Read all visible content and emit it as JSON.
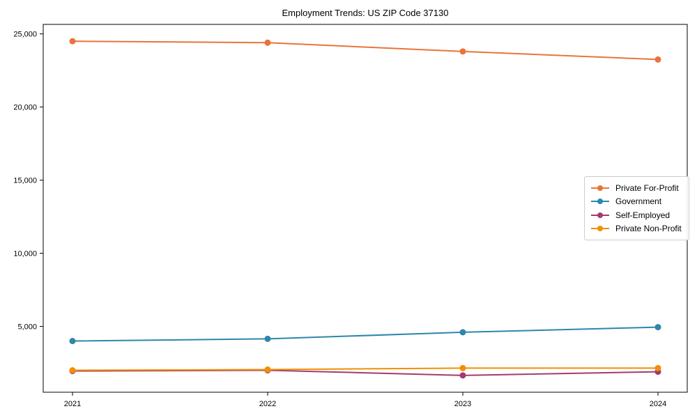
{
  "chart_data": {
    "type": "line",
    "title": "Employment Trends: US ZIP Code 37130",
    "xlabel": "",
    "ylabel": "",
    "x": [
      "2021",
      "2022",
      "2023",
      "2024"
    ],
    "series": [
      {
        "name": "Private For-Profit",
        "color": "#E8743B",
        "values": [
          24500,
          24400,
          23800,
          23250
        ]
      },
      {
        "name": "Government",
        "color": "#2E86AB",
        "values": [
          4000,
          4150,
          4600,
          4950
        ]
      },
      {
        "name": "Self-Employed",
        "color": "#A23B72",
        "values": [
          1950,
          2000,
          1650,
          1900
        ]
      },
      {
        "name": "Private Non-Profit",
        "color": "#F18F01",
        "values": [
          2000,
          2050,
          2150,
          2150
        ]
      }
    ],
    "ylim": [
      500,
      25650
    ],
    "y_ticks": [
      {
        "value": 5000,
        "label": "5,000"
      },
      {
        "value": 10000,
        "label": "10,000"
      },
      {
        "value": 15000,
        "label": "15,000"
      },
      {
        "value": 20000,
        "label": "20,000"
      },
      {
        "value": 25000,
        "label": "25,000"
      }
    ],
    "grid": false,
    "legend_position": "center-right",
    "marker": "circle"
  }
}
